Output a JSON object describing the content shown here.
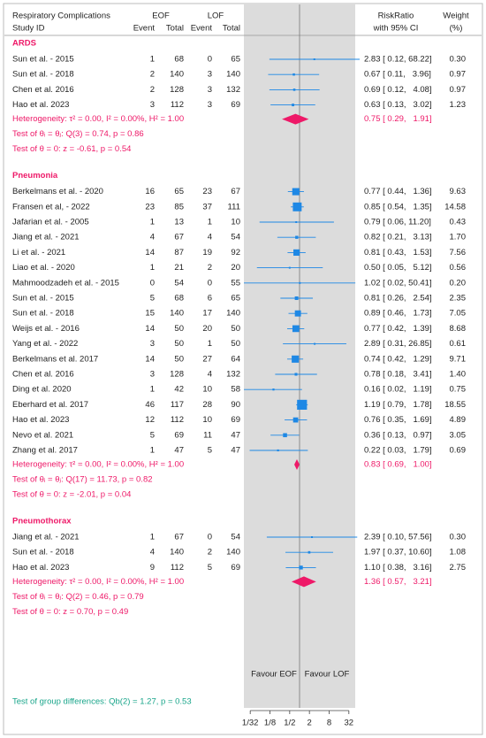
{
  "chart_data": {
    "type": "forest",
    "log_scale": true,
    "xlim": [
      0.02,
      50
    ],
    "xticks": [
      {
        "value": 0.03125,
        "label": "1/32"
      },
      {
        "value": 0.125,
        "label": "1/8"
      },
      {
        "value": 0.5,
        "label": "1/2"
      },
      2,
      8,
      32
    ],
    "reference_line": 1,
    "header": {
      "title": "Respiratory Complications",
      "study_id": "Study ID",
      "eof": "EOF",
      "lof": "LOF",
      "columns": [
        "Event",
        "Total",
        "Event",
        "Total"
      ],
      "rr": "RiskRatio",
      "ci": "with 95% CI",
      "weight": "Weight",
      "weight_unit": "(%)"
    },
    "study_color": "#1e88e5",
    "overall_color": "#ee1968",
    "groups": [
      {
        "name": "ARDS",
        "studies": [
          {
            "study": "Sun et al. - 2015",
            "eof_events": 1,
            "eof_total": 68,
            "lof_events": 0,
            "lof_total": 65,
            "rr": 2.83,
            "ci": [
              0.12,
              68.22
            ],
            "rr_label": "2.83 [ 0.12, 68.22]",
            "weight": 0.3,
            "weight_label": "0.30"
          },
          {
            "study": "Sun et al. - 2018",
            "eof_events": 2,
            "eof_total": 140,
            "lof_events": 3,
            "lof_total": 140,
            "rr": 0.67,
            "ci": [
              0.11,
              3.96
            ],
            "rr_label": "0.67 [ 0.11,   3.96]",
            "weight": 0.97,
            "weight_label": "0.97"
          },
          {
            "study": "Chen et al. 2016",
            "eof_events": 2,
            "eof_total": 128,
            "lof_events": 3,
            "lof_total": 132,
            "rr": 0.69,
            "ci": [
              0.12,
              4.08
            ],
            "rr_label": "0.69 [ 0.12,   4.08]",
            "weight": 0.97,
            "weight_label": "0.97"
          },
          {
            "study": "Hao et al. 2023",
            "eof_events": 3,
            "eof_total": 112,
            "lof_events": 3,
            "lof_total": 69,
            "rr": 0.63,
            "ci": [
              0.13,
              3.02
            ],
            "rr_label": "0.63 [ 0.13,   3.02]",
            "weight": 1.23,
            "weight_label": "1.23"
          }
        ],
        "overall": {
          "rr": 0.75,
          "ci": [
            0.29,
            1.91
          ],
          "rr_label": "0.75 [ 0.29,   1.91]"
        },
        "heterogeneity": "Heterogeneity: τ² = 0.00, I² = 0.00%, H² = 1.00",
        "test_homogeneity": "Test of θᵢ = θⱼ: Q(3) = 0.74, p = 0.86",
        "test_effect": "Test of θ = 0: z = -0.61, p = 0.54"
      },
      {
        "name": "Pneumonia",
        "studies": [
          {
            "study": "Berkelmans et al. - 2020",
            "eof_events": 16,
            "eof_total": 65,
            "lof_events": 23,
            "lof_total": 67,
            "rr": 0.77,
            "ci": [
              0.44,
              1.36
            ],
            "rr_label": "0.77 [ 0.44,   1.36]",
            "weight": 9.63,
            "weight_label": "9.63"
          },
          {
            "study": "Fransen et al, - 2022",
            "eof_events": 23,
            "eof_total": 85,
            "lof_events": 37,
            "lof_total": 111,
            "rr": 0.85,
            "ci": [
              0.54,
              1.35
            ],
            "rr_label": "0.85 [ 0.54,   1.35]",
            "weight": 14.58,
            "weight_label": "14.58"
          },
          {
            "study": "Jafarian et al. - 2005",
            "eof_events": 1,
            "eof_total": 13,
            "lof_events": 1,
            "lof_total": 10,
            "rr": 0.79,
            "ci": [
              0.06,
              11.2
            ],
            "rr_label": "0.79 [ 0.06, 11.20]",
            "weight": 0.43,
            "weight_label": "0.43"
          },
          {
            "study": "Jiang et al. - 2021",
            "eof_events": 4,
            "eof_total": 67,
            "lof_events": 4,
            "lof_total": 54,
            "rr": 0.82,
            "ci": [
              0.21,
              3.13
            ],
            "rr_label": "0.82 [ 0.21,   3.13]",
            "weight": 1.7,
            "weight_label": "1.70"
          },
          {
            "study": "Li et al. - 2021",
            "eof_events": 14,
            "eof_total": 87,
            "lof_events": 19,
            "lof_total": 92,
            "rr": 0.81,
            "ci": [
              0.43,
              1.53
            ],
            "rr_label": "0.81 [ 0.43,   1.53]",
            "weight": 7.56,
            "weight_label": "7.56"
          },
          {
            "study": "Liao et al. - 2020",
            "eof_events": 1,
            "eof_total": 21,
            "lof_events": 2,
            "lof_total": 20,
            "rr": 0.5,
            "ci": [
              0.05,
              5.12
            ],
            "rr_label": "0.50 [ 0.05,   5.12]",
            "weight": 0.56,
            "weight_label": "0.56"
          },
          {
            "study": "Mahmoodzadeh et al. - 2015",
            "eof_events": 0,
            "eof_total": 54,
            "lof_events": 0,
            "lof_total": 55,
            "rr": 1.02,
            "ci": [
              0.02,
              50.41
            ],
            "rr_label": "1.02 [ 0.02, 50.41]",
            "weight": 0.2,
            "weight_label": "0.20"
          },
          {
            "study": "Sun et al. - 2015",
            "eof_events": 5,
            "eof_total": 68,
            "lof_events": 6,
            "lof_total": 65,
            "rr": 0.81,
            "ci": [
              0.26,
              2.54
            ],
            "rr_label": "0.81 [ 0.26,   2.54]",
            "weight": 2.35,
            "weight_label": "2.35"
          },
          {
            "study": "Sun et al. - 2018",
            "eof_events": 15,
            "eof_total": 140,
            "lof_events": 17,
            "lof_total": 140,
            "rr": 0.89,
            "ci": [
              0.46,
              1.73
            ],
            "rr_label": "0.89 [ 0.46,   1.73]",
            "weight": 7.05,
            "weight_label": "7.05"
          },
          {
            "study": "Weijs et al. - 2016",
            "eof_events": 14,
            "eof_total": 50,
            "lof_events": 20,
            "lof_total": 50,
            "rr": 0.77,
            "ci": [
              0.42,
              1.39
            ],
            "rr_label": "0.77 [ 0.42,   1.39]",
            "weight": 8.68,
            "weight_label": "8.68"
          },
          {
            "study": "Yang et al. - 2022",
            "eof_events": 3,
            "eof_total": 50,
            "lof_events": 1,
            "lof_total": 50,
            "rr": 2.89,
            "ci": [
              0.31,
              26.85
            ],
            "rr_label": "2.89 [ 0.31, 26.85]",
            "weight": 0.61,
            "weight_label": "0.61"
          },
          {
            "study": "Berkelmans et al. 2017",
            "eof_events": 14,
            "eof_total": 50,
            "lof_events": 27,
            "lof_total": 64,
            "rr": 0.74,
            "ci": [
              0.42,
              1.29
            ],
            "rr_label": "0.74 [ 0.42,   1.29]",
            "weight": 9.71,
            "weight_label": "9.71"
          },
          {
            "study": "Chen et al. 2016",
            "eof_events": 3,
            "eof_total": 128,
            "lof_events": 4,
            "lof_total": 132,
            "rr": 0.78,
            "ci": [
              0.18,
              3.41
            ],
            "rr_label": "0.78 [ 0.18,   3.41]",
            "weight": 1.4,
            "weight_label": "1.40"
          },
          {
            "study": "Ding et al. 2020",
            "eof_events": 1,
            "eof_total": 42,
            "lof_events": 10,
            "lof_total": 58,
            "rr": 0.16,
            "ci": [
              0.02,
              1.19
            ],
            "rr_label": "0.16 [ 0.02,   1.19]",
            "weight": 0.75,
            "weight_label": "0.75"
          },
          {
            "study": "Eberhard et al. 2017",
            "eof_events": 46,
            "eof_total": 117,
            "lof_events": 28,
            "lof_total": 90,
            "rr": 1.19,
            "ci": [
              0.79,
              1.78
            ],
            "rr_label": "1.19 [ 0.79,   1.78]",
            "weight": 18.55,
            "weight_label": "18.55"
          },
          {
            "study": "Hao et al. 2023",
            "eof_events": 12,
            "eof_total": 112,
            "lof_events": 10,
            "lof_total": 69,
            "rr": 0.76,
            "ci": [
              0.35,
              1.69
            ],
            "rr_label": "0.76 [ 0.35,   1.69]",
            "weight": 4.89,
            "weight_label": "4.89"
          },
          {
            "study": "Nevo et al. 2021",
            "eof_events": 5,
            "eof_total": 69,
            "lof_events": 11,
            "lof_total": 47,
            "rr": 0.36,
            "ci": [
              0.13,
              0.97
            ],
            "rr_label": "0.36 [ 0.13,   0.97]",
            "weight": 3.05,
            "weight_label": "3.05"
          },
          {
            "study": "Zhang et al. 2017",
            "eof_events": 1,
            "eof_total": 47,
            "lof_events": 5,
            "lof_total": 47,
            "rr": 0.22,
            "ci": [
              0.03,
              1.79
            ],
            "rr_label": "0.22 [ 0.03,   1.79]",
            "weight": 0.69,
            "weight_label": "0.69"
          }
        ],
        "overall": {
          "rr": 0.83,
          "ci": [
            0.69,
            1.0
          ],
          "rr_label": "0.83 [ 0.69,   1.00]"
        },
        "heterogeneity": "Heterogeneity: τ² = 0.00, I² = 0.00%, H² = 1.00",
        "test_homogeneity": "Test of θᵢ = θⱼ: Q(17) = 11.73, p = 0.82",
        "test_effect": "Test of θ = 0: z = -2.01, p = 0.04"
      },
      {
        "name": "Pneumothorax",
        "studies": [
          {
            "study": "Jiang et al. - 2021",
            "eof_events": 1,
            "eof_total": 67,
            "lof_events": 0,
            "lof_total": 54,
            "rr": 2.39,
            "ci": [
              0.1,
              57.56
            ],
            "rr_label": "2.39 [ 0.10, 57.56]",
            "weight": 0.3,
            "weight_label": "0.30"
          },
          {
            "study": "Sun et al. - 2018",
            "eof_events": 4,
            "eof_total": 140,
            "lof_events": 2,
            "lof_total": 140,
            "rr": 1.97,
            "ci": [
              0.37,
              10.6
            ],
            "rr_label": "1.97 [ 0.37, 10.60]",
            "weight": 1.08,
            "weight_label": "1.08"
          },
          {
            "study": "Hao et al. 2023",
            "eof_events": 9,
            "eof_total": 112,
            "lof_events": 5,
            "lof_total": 69,
            "rr": 1.1,
            "ci": [
              0.38,
              3.16
            ],
            "rr_label": "1.10 [ 0.38,   3.16]",
            "weight": 2.75,
            "weight_label": "2.75"
          }
        ],
        "overall": {
          "rr": 1.36,
          "ci": [
            0.57,
            3.21
          ],
          "rr_label": "1.36 [ 0.57,   3.21]"
        },
        "heterogeneity": "Heterogeneity: τ² = 0.00, I² = 0.00%, H² = 1.00",
        "test_homogeneity": "Test of θᵢ = θⱼ: Q(2) = 0.46, p = 0.79",
        "test_effect": "Test of θ = 0: z = 0.70, p = 0.49"
      }
    ],
    "favour_left": "Favour EOF",
    "favour_right": "Favour LOF",
    "group_test": "Test of group differences: Qb(2) = 1.27, p = 0.53"
  }
}
